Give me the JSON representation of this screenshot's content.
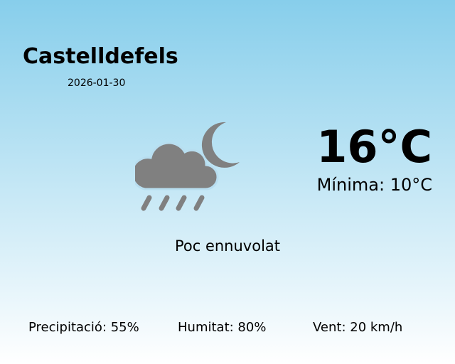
{
  "city": "Castelldefels",
  "date": "2026-01-30",
  "temperature": "16°C",
  "minimum": "Mínima: 10°C",
  "description": "Poc ennuvolat",
  "icon": "night-cloud-rain-icon",
  "icon_color": "#808080",
  "stats": {
    "precipitation": "Precipitació: 55%",
    "humidity": "Humitat: 80%",
    "wind": "Vent: 20 km/h"
  }
}
